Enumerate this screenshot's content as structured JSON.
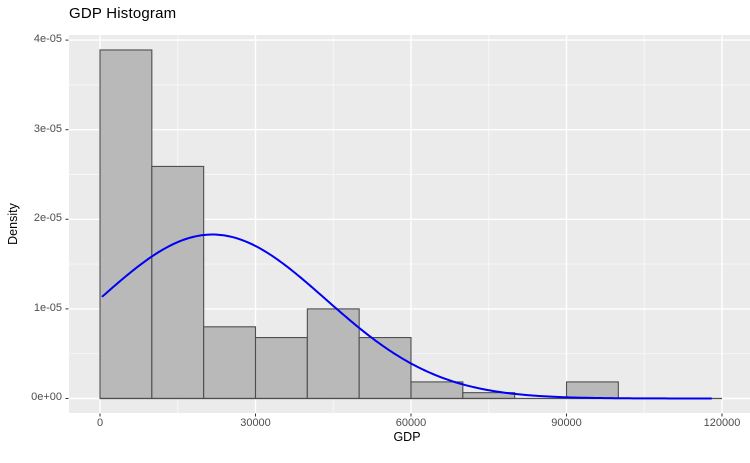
{
  "title": "GDP Histogram",
  "chart_data": {
    "type": "histogram",
    "title": "GDP Histogram",
    "xlabel": "GDP",
    "ylabel": "Density",
    "xlim": [
      -5981,
      125400
    ],
    "ylim": [
      -1.62e-06,
      4.057e-05
    ],
    "binwidth": 10000,
    "bins": [
      {
        "start": 0,
        "end": 10000,
        "density": 3.89e-05
      },
      {
        "start": 10000,
        "end": 20000,
        "density": 2.59e-05
      },
      {
        "start": 20000,
        "end": 30000,
        "density": 8e-06
      },
      {
        "start": 30000,
        "end": 40000,
        "density": 6.8e-06
      },
      {
        "start": 40000,
        "end": 50000,
        "density": 1e-05
      },
      {
        "start": 50000,
        "end": 60000,
        "density": 6.8e-06
      },
      {
        "start": 60000,
        "end": 70000,
        "density": 1.85e-06
      },
      {
        "start": 70000,
        "end": 80000,
        "density": 6.5e-07
      },
      {
        "start": 80000,
        "end": 90000,
        "density": 0
      },
      {
        "start": 90000,
        "end": 100000,
        "density": 1.85e-06
      },
      {
        "start": 100000,
        "end": 110000,
        "density": 0
      },
      {
        "start": 110000,
        "end": 120000,
        "density": 0
      }
    ],
    "curve": {
      "kind": "normal-density",
      "mean": 21700,
      "sd": 21800,
      "peak_density": 1.83e-05,
      "x_start": 500,
      "x_end": 117900
    },
    "x_ticks": [
      {
        "value": 0,
        "label": "0"
      },
      {
        "value": 30000,
        "label": "30000"
      },
      {
        "value": 60000,
        "label": "60000"
      },
      {
        "value": 90000,
        "label": "90000"
      },
      {
        "value": 120000,
        "label": "120000"
      }
    ],
    "y_ticks": [
      {
        "value": 0,
        "label": "0e+00"
      },
      {
        "value": 1e-05,
        "label": "1e-05"
      },
      {
        "value": 2e-05,
        "label": "2e-05"
      },
      {
        "value": 3e-05,
        "label": "3e-05"
      },
      {
        "value": 4e-05,
        "label": "4e-05"
      }
    ],
    "x_minor_gridlines": [
      15000,
      45000,
      75000,
      105000
    ],
    "y_minor_gridlines": [
      5e-06,
      1.5e-05,
      2.5e-05,
      3.5e-05
    ],
    "legend": false,
    "grid": true,
    "colors": {
      "bar_fill": "#b9b9b9",
      "bar_stroke": "#4e4e4e",
      "panel_bg": "#ebebeb",
      "grid_major": "#ffffff",
      "grid_minor": "#f7f7f7",
      "tick_text": "#4d4d4d",
      "tick_mark": "#333333",
      "curve": "#0000f2",
      "title_text": "#000000"
    }
  }
}
